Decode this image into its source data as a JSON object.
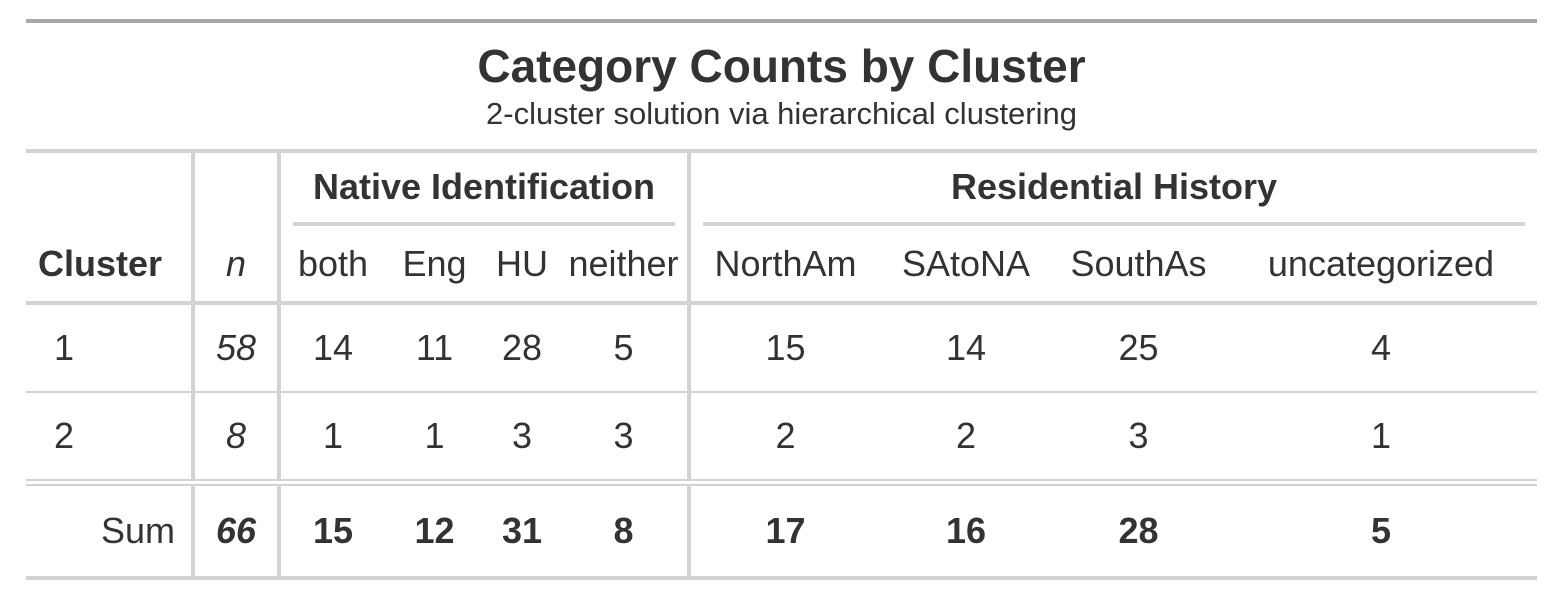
{
  "title": "Category Counts by Cluster",
  "subtitle": "2-cluster solution via hierarchical clustering",
  "spanners": {
    "native": "Native Identification",
    "residential": "Residential History"
  },
  "columns": {
    "cluster": "Cluster",
    "n": "n",
    "both": "both",
    "eng": "Eng",
    "hu": "HU",
    "neither": "neither",
    "northam": "NorthAm",
    "satona": "SAtoNA",
    "southas": "SouthAs",
    "uncategorized": "uncategorized"
  },
  "rows": [
    {
      "cluster": "1",
      "n": "58",
      "both": "14",
      "eng": "11",
      "hu": "28",
      "neither": "5",
      "northam": "15",
      "satona": "14",
      "southas": "25",
      "uncategorized": "4"
    },
    {
      "cluster": "2",
      "n": "8",
      "both": "1",
      "eng": "1",
      "hu": "3",
      "neither": "3",
      "northam": "2",
      "satona": "2",
      "southas": "3",
      "uncategorized": "1"
    }
  ],
  "summary": {
    "label": "Sum",
    "n": "66",
    "both": "15",
    "eng": "12",
    "hu": "31",
    "neither": "8",
    "northam": "17",
    "satona": "16",
    "southas": "28",
    "uncategorized": "5"
  },
  "colors": {
    "text": "#333333",
    "rule_dark": "#a8a8a8",
    "rule_light": "#d3d3d3"
  }
}
